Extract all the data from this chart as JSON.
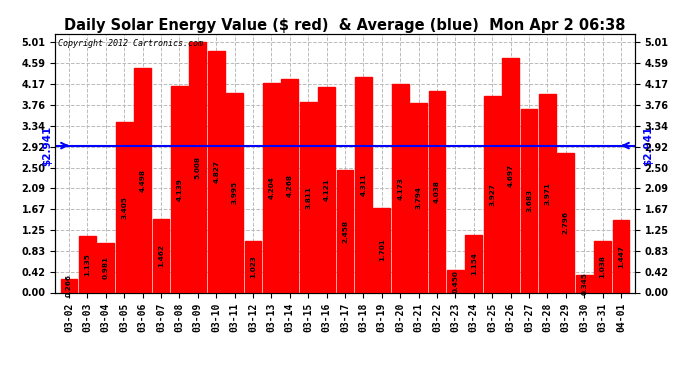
{
  "title": "Daily Solar Energy Value ($ red)  & Average (blue)  Mon Apr 2 06:38",
  "copyright": "Copyright 2012 Cartronics.com",
  "average": 2.941,
  "average_label": "$2.941",
  "bar_color": "#FF0000",
  "average_line_color": "#0000FF",
  "background_color": "#FFFFFF",
  "plot_bg_color": "#FFFFFF",
  "grid_color": "#BBBBBB",
  "categories": [
    "03-02",
    "03-03",
    "03-04",
    "03-05",
    "03-06",
    "03-07",
    "03-08",
    "03-09",
    "03-10",
    "03-11",
    "03-12",
    "03-13",
    "03-14",
    "03-15",
    "03-16",
    "03-17",
    "03-18",
    "03-19",
    "03-20",
    "03-21",
    "03-22",
    "03-23",
    "03-24",
    "03-25",
    "03-26",
    "03-27",
    "03-28",
    "03-29",
    "03-30",
    "03-31",
    "04-01"
  ],
  "values": [
    0.266,
    1.135,
    0.981,
    3.405,
    4.498,
    1.462,
    4.139,
    5.008,
    4.827,
    3.995,
    1.023,
    4.204,
    4.268,
    3.811,
    4.121,
    2.458,
    4.311,
    1.701,
    4.173,
    3.794,
    4.038,
    0.45,
    1.154,
    3.927,
    4.697,
    3.683,
    3.971,
    2.796,
    0.345,
    1.038,
    1.447
  ],
  "yticks": [
    0.0,
    0.42,
    0.83,
    1.25,
    1.67,
    2.09,
    2.5,
    2.92,
    3.34,
    3.76,
    4.17,
    4.59,
    5.01
  ],
  "ylim": [
    0.0,
    5.18
  ],
  "value_fontsize": 5.2,
  "tick_fontsize": 7.0,
  "title_fontsize": 10.5
}
